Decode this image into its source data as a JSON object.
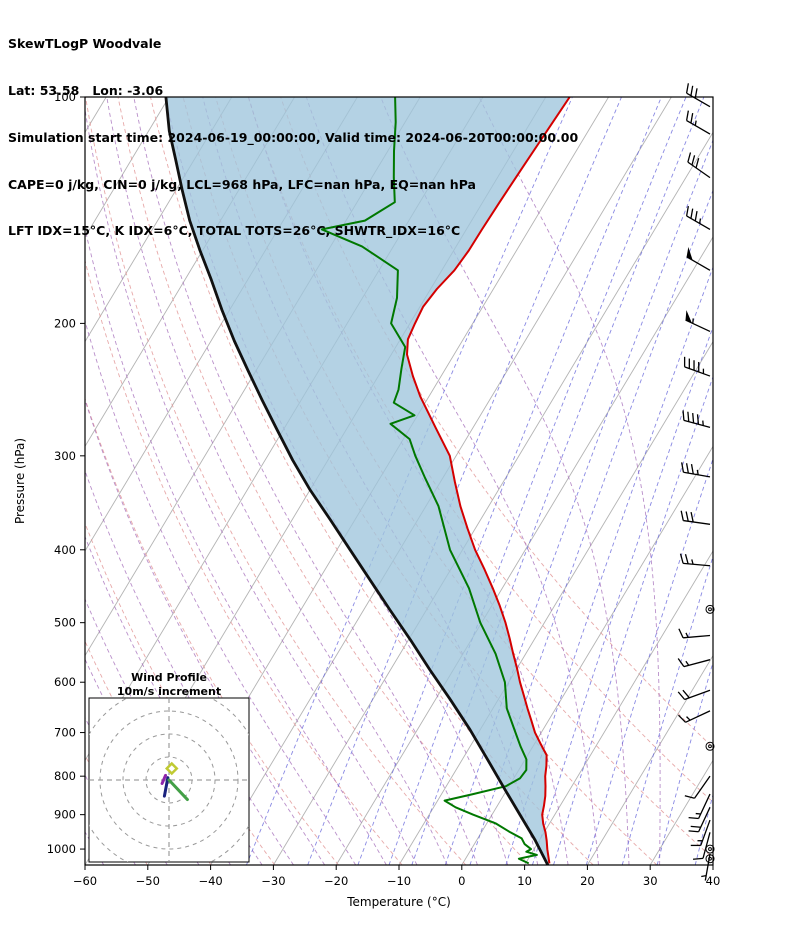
{
  "header": {
    "title": "SkewTLogP Woodvale",
    "line2": "Lat: 53.58   Lon: -3.06",
    "line3": "Simulation start time: 2024-06-19_00:00:00, Valid time: 2024-06-20T00:00:00.00",
    "line4": "CAPE=0 j/kg, CIN=0 j/kg, LCL=968 hPa, LFC=nan hPa, EQ=nan hPa",
    "line5": "LFT IDX=15°C, K IDX=6°C, TOTAL TOTS=26°C, SHWTR_IDX=16°C"
  },
  "chart_data": {
    "type": "line",
    "subtype": "skewT-logP",
    "xlabel": "Temperature (°C)",
    "ylabel": "Pressure (hPa)",
    "xlim": [
      -60,
      40
    ],
    "ylim": [
      1050,
      100
    ],
    "x_tick_values": [
      -60,
      -50,
      -40,
      -30,
      -20,
      -10,
      0,
      10,
      20,
      30,
      40
    ],
    "x_tick_labels": [
      "−60",
      "−50",
      "−40",
      "−30",
      "−20",
      "−10",
      "0",
      "10",
      "20",
      "30",
      "40"
    ],
    "y_ticks": [
      100,
      200,
      300,
      400,
      500,
      600,
      700,
      800,
      900,
      1000
    ],
    "background": {
      "isotherms": {
        "color": "#b3b3b3",
        "start": -130,
        "end": 40,
        "step": 10
      },
      "dry_adiabats": {
        "color": "#e39a9a",
        "theta_start_K": 200,
        "theta_end_K": 330,
        "theta_step_K": 10
      },
      "moist_adiabats": {
        "color": "#a873bd",
        "thetaw_start_C": -60,
        "thetaw_end_C": 30,
        "thetaw_step_C": 5
      },
      "mixing_ratio": {
        "color": "#6b6bdc",
        "values_g_kg": [
          0.2,
          0.5,
          1,
          1.5,
          2,
          3,
          4,
          6,
          8,
          10,
          14,
          20,
          28,
          40
        ]
      }
    },
    "fill_between": {
      "from": "parcel_reference",
      "to": "temperature",
      "color": "#9fc5dc",
      "opacity": 0.78
    },
    "series": [
      {
        "name": "temperature",
        "color": "#d40000",
        "points": [
          [
            1045,
            13.8
          ],
          [
            1000,
            12.1
          ],
          [
            975,
            11.2
          ],
          [
            950,
            10.2
          ],
          [
            925,
            9.0
          ],
          [
            900,
            8.0
          ],
          [
            875,
            7.4
          ],
          [
            850,
            6.7
          ],
          [
            825,
            5.8
          ],
          [
            800,
            4.8
          ],
          [
            775,
            4.0
          ],
          [
            750,
            3.0
          ],
          [
            725,
            1.0
          ],
          [
            700,
            -1.0
          ],
          [
            675,
            -2.7
          ],
          [
            650,
            -4.5
          ],
          [
            625,
            -6.3
          ],
          [
            600,
            -8.2
          ],
          [
            575,
            -10.0
          ],
          [
            550,
            -12.0
          ],
          [
            525,
            -14.0
          ],
          [
            500,
            -16.2
          ],
          [
            475,
            -18.7
          ],
          [
            450,
            -21.5
          ],
          [
            425,
            -24.6
          ],
          [
            400,
            -28.0
          ],
          [
            375,
            -31.2
          ],
          [
            350,
            -34.5
          ],
          [
            325,
            -37.7
          ],
          [
            300,
            -41.0
          ],
          [
            275,
            -46.0
          ],
          [
            250,
            -51.4
          ],
          [
            235,
            -54.5
          ],
          [
            220,
            -57.5
          ],
          [
            210,
            -58.8
          ],
          [
            200,
            -59.2
          ],
          [
            190,
            -59.5
          ],
          [
            180,
            -59.0
          ],
          [
            170,
            -58.0
          ],
          [
            160,
            -57.6
          ],
          [
            150,
            -57.5
          ],
          [
            138,
            -57.3
          ],
          [
            125,
            -57.0
          ],
          [
            112,
            -56.6
          ],
          [
            100,
            -56.2
          ]
        ]
      },
      {
        "name": "dewpoint",
        "color": "#007800",
        "points": [
          [
            1045,
            10.5
          ],
          [
            1030,
            8.5
          ],
          [
            1018,
            11.0
          ],
          [
            1008,
            9.0
          ],
          [
            1000,
            9.5
          ],
          [
            985,
            8.0
          ],
          [
            968,
            7.0
          ],
          [
            950,
            4.6
          ],
          [
            925,
            1.5
          ],
          [
            900,
            -3.0
          ],
          [
            880,
            -6.5
          ],
          [
            862,
            -8.9
          ],
          [
            845,
            -5.0
          ],
          [
            825,
            -0.5
          ],
          [
            805,
            1.0
          ],
          [
            785,
            1.2
          ],
          [
            760,
            0.2
          ],
          [
            730,
            -2.0
          ],
          [
            700,
            -4.1
          ],
          [
            650,
            -7.8
          ],
          [
            600,
            -10.6
          ],
          [
            550,
            -14.8
          ],
          [
            500,
            -20.2
          ],
          [
            450,
            -25.3
          ],
          [
            400,
            -32.0
          ],
          [
            350,
            -38.0
          ],
          [
            320,
            -43.0
          ],
          [
            300,
            -46.5
          ],
          [
            285,
            -49.0
          ],
          [
            272,
            -53.5
          ],
          [
            265,
            -50.5
          ],
          [
            255,
            -55.0
          ],
          [
            245,
            -55.5
          ],
          [
            230,
            -57.0
          ],
          [
            215,
            -58.5
          ],
          [
            200,
            -63.0
          ],
          [
            185,
            -64.5
          ],
          [
            170,
            -67.0
          ],
          [
            158,
            -75.0
          ],
          [
            150,
            -83.0
          ],
          [
            146,
            -77.0
          ],
          [
            138,
            -74.0
          ],
          [
            128,
            -76.5
          ],
          [
            118,
            -79.0
          ],
          [
            108,
            -81.5
          ],
          [
            100,
            -84.0
          ]
        ]
      },
      {
        "name": "parcel_reference",
        "color": "#111111",
        "points": [
          [
            1050,
            13.7
          ],
          [
            973,
            9.3
          ],
          [
            901,
            4.5
          ],
          [
            834,
            -0.3
          ],
          [
            761,
            -5.9
          ],
          [
            694,
            -11.6
          ],
          [
            633,
            -17.6
          ],
          [
            578,
            -23.7
          ],
          [
            527,
            -29.7
          ],
          [
            481,
            -35.8
          ],
          [
            439,
            -41.8
          ],
          [
            400,
            -47.9
          ],
          [
            365,
            -53.9
          ],
          [
            333,
            -60.0
          ],
          [
            304,
            -65.6
          ],
          [
            277,
            -71.0
          ],
          [
            253,
            -76.2
          ],
          [
            231,
            -81.3
          ],
          [
            211,
            -86.3
          ],
          [
            192,
            -91.2
          ],
          [
            175,
            -95.8
          ],
          [
            160,
            -100.4
          ],
          [
            146,
            -104.9
          ],
          [
            133,
            -109.0
          ],
          [
            121,
            -113.0
          ],
          [
            111,
            -116.7
          ],
          [
            100,
            -120.5
          ]
        ]
      }
    ],
    "wind_barbs": [
      {
        "p": 103,
        "kt": 30,
        "dir": 300
      },
      {
        "p": 112,
        "kt": 25,
        "dir": 300
      },
      {
        "p": 128,
        "kt": 30,
        "dir": 305
      },
      {
        "p": 150,
        "kt": 35,
        "dir": 300
      },
      {
        "p": 170,
        "kt": 50,
        "dir": 300
      },
      {
        "p": 205,
        "kt": 55,
        "dir": 295
      },
      {
        "p": 235,
        "kt": 45,
        "dir": 290
      },
      {
        "p": 275,
        "kt": 45,
        "dir": 285
      },
      {
        "p": 320,
        "kt": 35,
        "dir": 280
      },
      {
        "p": 370,
        "kt": 30,
        "dir": 278
      },
      {
        "p": 420,
        "kt": 25,
        "dir": 275
      },
      {
        "p": 480,
        "kt": 0,
        "dir": 0
      },
      {
        "p": 520,
        "kt": 15,
        "dir": 265
      },
      {
        "p": 560,
        "kt": 15,
        "dir": 255
      },
      {
        "p": 615,
        "kt": 20,
        "dir": 250
      },
      {
        "p": 655,
        "kt": 15,
        "dir": 245
      },
      {
        "p": 730,
        "kt": 0,
        "dir": 0
      },
      {
        "p": 800,
        "kt": 10,
        "dir": 215
      },
      {
        "p": 845,
        "kt": 15,
        "dir": 205
      },
      {
        "p": 880,
        "kt": 20,
        "dir": 205
      },
      {
        "p": 915,
        "kt": 15,
        "dir": 200
      },
      {
        "p": 950,
        "kt": 10,
        "dir": 195
      },
      {
        "p": 1000,
        "kt": 0,
        "dir": 0
      },
      {
        "p": 1015,
        "kt": 5,
        "dir": 190
      },
      {
        "p": 1030,
        "kt": 0,
        "dir": 0
      }
    ]
  },
  "hodograph": {
    "title1": "Wind Profile",
    "title2": "10m/s increment",
    "ring_interval_ms": 10,
    "rings_ms": [
      10,
      20,
      30,
      40
    ],
    "segments": [
      {
        "color": "#8e24aa",
        "points": [
          [
            -1.5,
            2
          ],
          [
            -3,
            -1.5
          ]
        ]
      },
      {
        "color": "#1a237e",
        "points": [
          [
            -0.5,
            1
          ],
          [
            -2,
            -7
          ]
        ]
      },
      {
        "color": "#43a047",
        "points": [
          [
            0,
            0
          ],
          [
            8,
            -8.5
          ]
        ]
      }
    ],
    "marker": {
      "color": "#c0ca33",
      "points": [
        [
          1.2,
          5
        ]
      ]
    }
  }
}
